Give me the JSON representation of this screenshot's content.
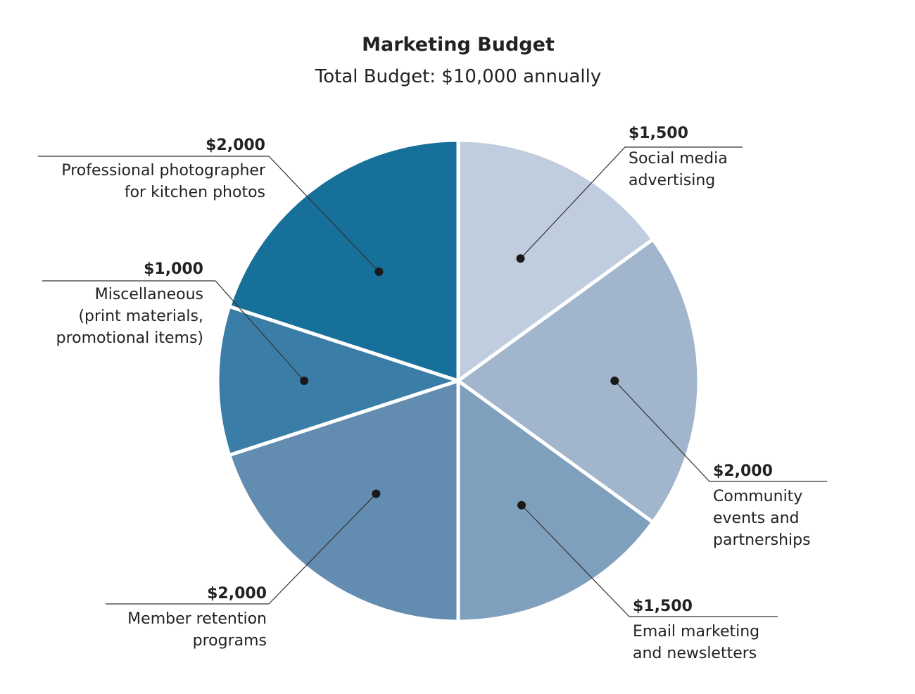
{
  "chart_data": {
    "type": "pie",
    "title": "Marketing Budget",
    "subtitle": "Total Budget: $10,000 annually",
    "slices": [
      {
        "amount_label": "$1,500",
        "value": 1500,
        "label_lines": [
          "Social media",
          "advertising"
        ],
        "color": "#c0cddf"
      },
      {
        "amount_label": "$2,000",
        "value": 2000,
        "label_lines": [
          "Community",
          "events and",
          "partnerships"
        ],
        "color": "#a1b5cc"
      },
      {
        "amount_label": "$1,500",
        "value": 1500,
        "label_lines": [
          "Email marketing",
          "and newsletters"
        ],
        "color": "#7fa0bd"
      },
      {
        "amount_label": "$2,000",
        "value": 2000,
        "label_lines": [
          "Member retention",
          "programs"
        ],
        "color": "#628cb0"
      },
      {
        "amount_label": "$1,000",
        "value": 1000,
        "label_lines": [
          "Miscellaneous",
          "(print materials,",
          "promotional items)"
        ],
        "color": "#3a7ea7"
      },
      {
        "amount_label": "$2,000",
        "value": 2000,
        "label_lines": [
          "Professional photographer",
          "for kitchen photos"
        ],
        "color": "#177099"
      }
    ]
  }
}
